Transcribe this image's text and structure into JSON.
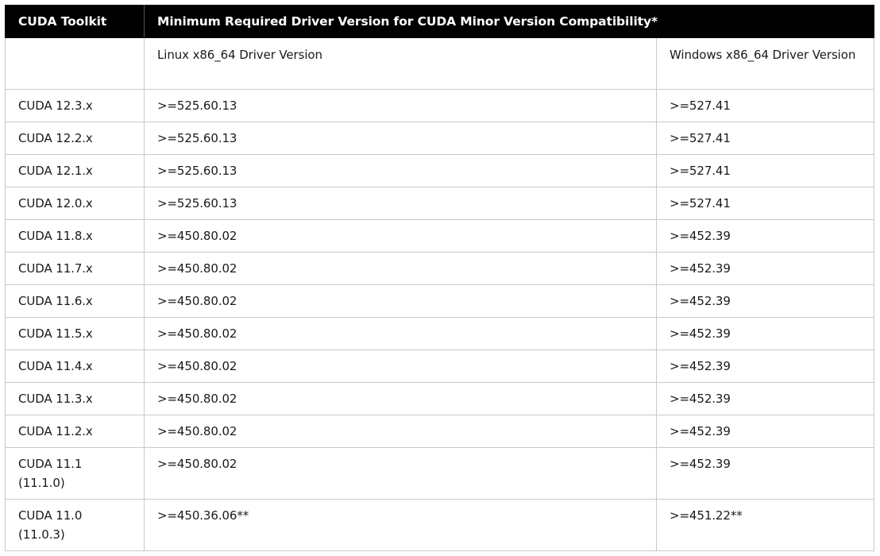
{
  "table": {
    "headers": [
      "CUDA Toolkit",
      "Minimum Required Driver Version for CUDA Minor Version Compatibility*"
    ],
    "subheaders": [
      "",
      "Linux x86_64 Driver Version",
      "Windows x86_64 Driver Version"
    ],
    "rows": [
      {
        "toolkit": "CUDA 12.3.x",
        "linux": ">=525.60.13",
        "windows": ">=527.41"
      },
      {
        "toolkit": "CUDA 12.2.x",
        "linux": ">=525.60.13",
        "windows": ">=527.41"
      },
      {
        "toolkit": "CUDA 12.1.x",
        "linux": ">=525.60.13",
        "windows": ">=527.41"
      },
      {
        "toolkit": "CUDA 12.0.x",
        "linux": ">=525.60.13",
        "windows": ">=527.41"
      },
      {
        "toolkit": "CUDA 11.8.x",
        "linux": ">=450.80.02",
        "windows": ">=452.39"
      },
      {
        "toolkit": "CUDA 11.7.x",
        "linux": ">=450.80.02",
        "windows": ">=452.39"
      },
      {
        "toolkit": "CUDA 11.6.x",
        "linux": ">=450.80.02",
        "windows": ">=452.39"
      },
      {
        "toolkit": "CUDA 11.5.x",
        "linux": ">=450.80.02",
        "windows": ">=452.39"
      },
      {
        "toolkit": "CUDA 11.4.x",
        "linux": ">=450.80.02",
        "windows": ">=452.39"
      },
      {
        "toolkit": "CUDA 11.3.x",
        "linux": ">=450.80.02",
        "windows": ">=452.39"
      },
      {
        "toolkit": "CUDA 11.2.x",
        "linux": ">=450.80.02",
        "windows": ">=452.39"
      },
      {
        "toolkit": "CUDA 11.1\n(11.1.0)",
        "linux": ">=450.80.02",
        "windows": ">=452.39"
      },
      {
        "toolkit": "CUDA 11.0\n(11.0.3)",
        "linux": ">=450.36.06**",
        "windows": ">=451.22**"
      }
    ]
  }
}
